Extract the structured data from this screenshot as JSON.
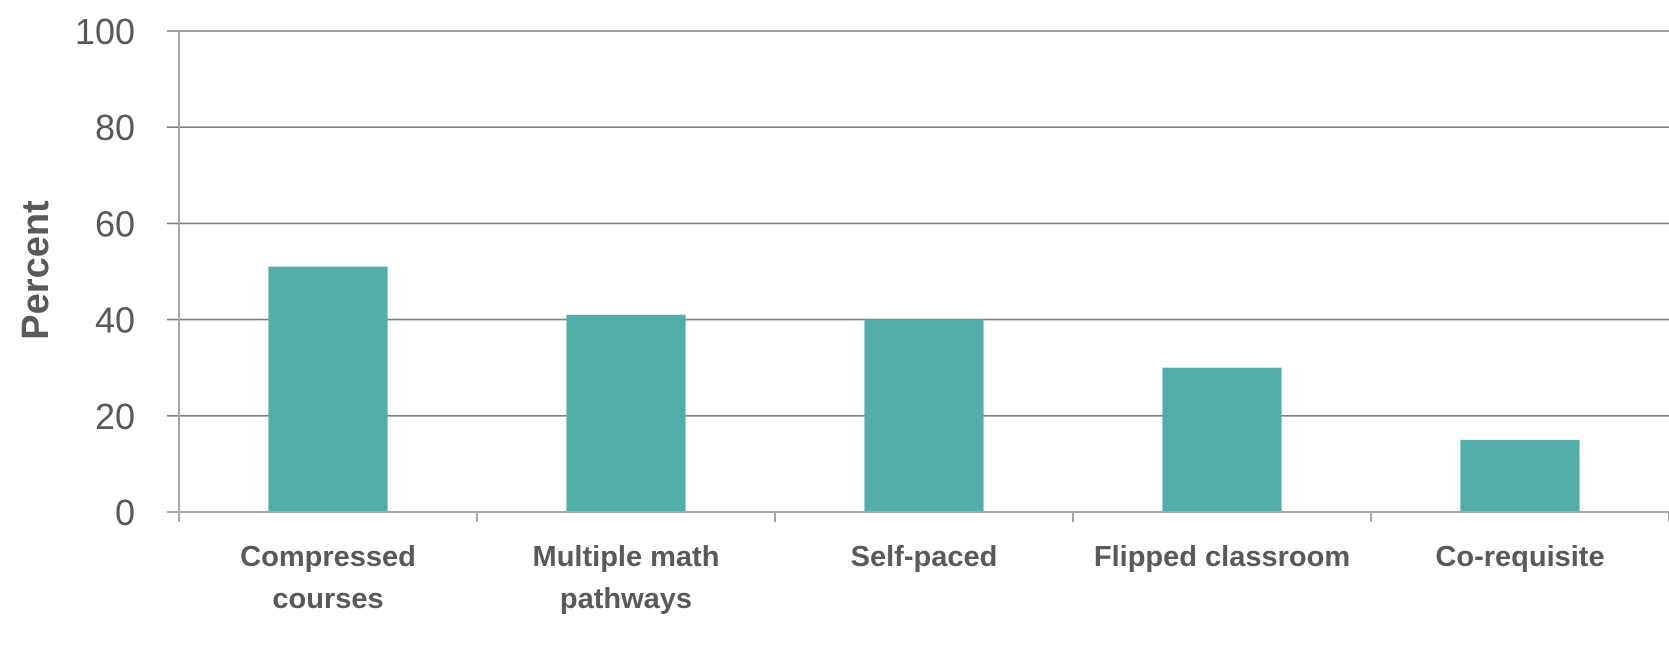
{
  "chart_data": {
    "type": "bar",
    "categories": [
      [
        "Compressed",
        "courses"
      ],
      [
        "Multiple math",
        "pathways"
      ],
      [
        "Self-paced"
      ],
      [
        "Flipped classroom"
      ],
      [
        "Co-requisite"
      ]
    ],
    "values": [
      51,
      41,
      40,
      30,
      15
    ],
    "title": "",
    "xlabel": "",
    "ylabel": "Percent",
    "ylim": [
      0,
      100
    ],
    "yticks": [
      "0",
      "20",
      "40",
      "60",
      "80",
      "100"
    ],
    "grid": true,
    "bar_color": "#52ADAA",
    "text_color": "#595959",
    "grid_color": "#7F7F7F",
    "axis_color": "#A6A6A6"
  }
}
